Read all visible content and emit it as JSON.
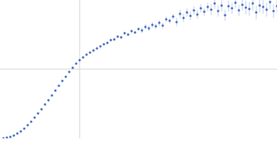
{
  "chart_data": {
    "type": "scatter",
    "x": [
      0.05,
      0.1,
      0.15,
      0.2,
      0.25,
      0.3,
      0.35,
      0.4,
      0.45,
      0.5,
      0.55,
      0.6,
      0.65,
      0.7,
      0.75,
      0.8,
      0.85,
      0.9,
      0.95,
      1.0,
      1.05,
      1.1,
      1.15,
      1.2,
      1.25,
      1.3,
      1.35,
      1.4,
      1.45,
      1.5,
      1.55,
      1.6,
      1.65,
      1.7,
      1.75,
      1.8,
      1.85,
      1.9,
      1.95,
      2.0,
      2.05,
      2.1,
      2.15,
      2.2,
      2.25,
      2.3,
      2.35,
      2.4,
      2.45,
      2.5,
      2.55,
      2.6,
      2.65,
      2.7,
      2.75,
      2.8,
      2.85,
      2.9,
      2.95,
      3.0,
      3.05,
      3.1,
      3.15,
      3.2,
      3.25,
      3.3,
      3.35,
      3.4,
      3.45,
      3.5,
      3.55,
      3.6,
      3.65,
      3.7,
      3.75,
      3.8,
      3.85,
      3.9,
      3.95,
      4.0
    ],
    "values": [
      0.0,
      0.01,
      0.02,
      0.04,
      0.07,
      0.1,
      0.14,
      0.19,
      0.24,
      0.3,
      0.36,
      0.42,
      0.49,
      0.55,
      0.62,
      0.69,
      0.76,
      0.83,
      0.89,
      0.96,
      1.02,
      1.08,
      1.13,
      1.17,
      1.21,
      1.24,
      1.27,
      1.3,
      1.33,
      1.36,
      1.38,
      1.42,
      1.43,
      1.47,
      1.46,
      1.52,
      1.5,
      1.55,
      1.53,
      1.58,
      1.56,
      1.61,
      1.59,
      1.64,
      1.62,
      1.67,
      1.63,
      1.72,
      1.7,
      1.76,
      1.68,
      1.8,
      1.74,
      1.82,
      1.77,
      1.85,
      1.79,
      1.88,
      1.83,
      1.9,
      1.86,
      1.95,
      1.84,
      1.92,
      1.78,
      1.91,
      1.88,
      1.96,
      1.85,
      1.93,
      1.89,
      1.87,
      1.95,
      1.82,
      1.92,
      1.9,
      1.86,
      1.97,
      1.84,
      1.91
    ],
    "errors": [
      0.005,
      0.005,
      0.005,
      0.005,
      0.005,
      0.005,
      0.005,
      0.005,
      0.005,
      0.005,
      0.005,
      0.005,
      0.005,
      0.005,
      0.005,
      0.005,
      0.005,
      0.005,
      0.005,
      0.005,
      0.01,
      0.01,
      0.01,
      0.01,
      0.01,
      0.01,
      0.01,
      0.01,
      0.01,
      0.01,
      0.02,
      0.02,
      0.02,
      0.02,
      0.02,
      0.02,
      0.02,
      0.02,
      0.02,
      0.02,
      0.04,
      0.04,
      0.04,
      0.04,
      0.04,
      0.04,
      0.04,
      0.04,
      0.04,
      0.04,
      0.06,
      0.06,
      0.06,
      0.06,
      0.06,
      0.06,
      0.06,
      0.06,
      0.06,
      0.06,
      0.08,
      0.08,
      0.08,
      0.08,
      0.08,
      0.08,
      0.08,
      0.08,
      0.08,
      0.08,
      0.1,
      0.1,
      0.1,
      0.1,
      0.1,
      0.1,
      0.1,
      0.1,
      0.1,
      0.1
    ],
    "color": "#3d66c0",
    "xlim": [
      0,
      4
    ],
    "ylim": [
      0,
      2
    ],
    "xticks": [
      1.15
    ],
    "yticks": [
      1
    ],
    "grid": true
  }
}
